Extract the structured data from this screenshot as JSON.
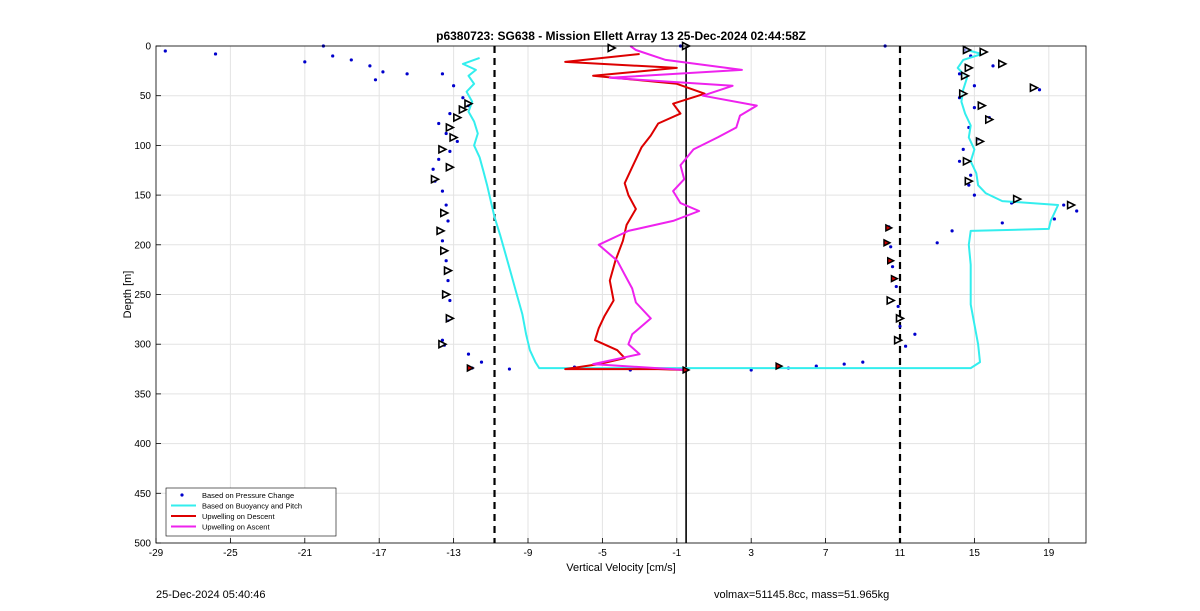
{
  "chart_data": {
    "type": "line",
    "title": "p6380723: SG638 - Mission Ellett Array 13 25-Dec-2024 02:44:58Z",
    "xlabel": "Vertical Velocity [cm/s]",
    "ylabel": "Depth [m]",
    "xlim": [
      -29,
      21
    ],
    "ylim": [
      0,
      500
    ],
    "y_reversed": true,
    "grid": true,
    "xticks": [
      -29,
      -25,
      -21,
      -17,
      -13,
      -9,
      -5,
      -1,
      3,
      7,
      11,
      15,
      19
    ],
    "yticks": [
      0,
      50,
      100,
      150,
      200,
      250,
      300,
      350,
      400,
      450,
      500
    ],
    "legend_position": "bottom-left",
    "reference_lines": {
      "dashed": [
        -10.8,
        11
      ],
      "solid": [
        -0.5
      ]
    },
    "series": [
      {
        "name": "Based on Pressure Change",
        "style": "dots",
        "color": "#0000cc",
        "points": [
          [
            -28.5,
            5
          ],
          [
            -25.8,
            8
          ],
          [
            -20,
            0
          ],
          [
            -19.5,
            10
          ],
          [
            -21,
            16
          ],
          [
            -18.5,
            14
          ],
          [
            -17.5,
            20
          ],
          [
            -16.8,
            26
          ],
          [
            -17.2,
            34
          ],
          [
            -15.5,
            28
          ],
          [
            -13.6,
            28
          ],
          [
            -13,
            40
          ],
          [
            -12.5,
            52
          ],
          [
            -12.2,
            60
          ],
          [
            -13.2,
            68
          ],
          [
            -13.8,
            78
          ],
          [
            -13.4,
            88
          ],
          [
            -12.8,
            96
          ],
          [
            -13.2,
            106
          ],
          [
            -13.8,
            114
          ],
          [
            -14.1,
            124
          ],
          [
            -14,
            136
          ],
          [
            -13.6,
            146
          ],
          [
            -13.4,
            160
          ],
          [
            -13.3,
            176
          ],
          [
            -13.6,
            196
          ],
          [
            -13.4,
            216
          ],
          [
            -13.3,
            236
          ],
          [
            -13.2,
            256
          ],
          [
            -13.3,
            276
          ],
          [
            -13.6,
            296
          ],
          [
            -13.5,
            301
          ],
          [
            -12.2,
            310
          ],
          [
            -11.5,
            318
          ],
          [
            -12,
            324
          ],
          [
            -10,
            325
          ],
          [
            -6.5,
            323
          ],
          [
            -3.5,
            326
          ],
          [
            -0.8,
            0
          ],
          [
            -0.5,
            326
          ],
          [
            3,
            326
          ],
          [
            5,
            324
          ],
          [
            6.5,
            322
          ],
          [
            8,
            320
          ],
          [
            9,
            318
          ],
          [
            10.4,
            182
          ],
          [
            10.5,
            202
          ],
          [
            10.6,
            222
          ],
          [
            10.8,
            242
          ],
          [
            10.9,
            262
          ],
          [
            11,
            282
          ],
          [
            11.3,
            302
          ],
          [
            11.8,
            290
          ],
          [
            14.5,
            4
          ],
          [
            14.8,
            10
          ],
          [
            16,
            20
          ],
          [
            14.2,
            28
          ],
          [
            15,
            40
          ],
          [
            18.5,
            44
          ],
          [
            14.2,
            52
          ],
          [
            15,
            62
          ],
          [
            15.8,
            72
          ],
          [
            14.7,
            82
          ],
          [
            15.2,
            94
          ],
          [
            14.4,
            104
          ],
          [
            14.2,
            116
          ],
          [
            14.8,
            130
          ],
          [
            14.7,
            140
          ],
          [
            15,
            150
          ],
          [
            17,
            158
          ],
          [
            19.8,
            160
          ],
          [
            20.5,
            166
          ],
          [
            19.3,
            174
          ],
          [
            16.5,
            178
          ],
          [
            13.8,
            186
          ],
          [
            13,
            198
          ],
          [
            10.2,
            0
          ]
        ]
      },
      {
        "name": "Based on Buoyancy and Pitch",
        "style": "line",
        "color": "#33eeee",
        "points": [
          [
            -11.6,
            12
          ],
          [
            -12.5,
            18
          ],
          [
            -11.8,
            24
          ],
          [
            -12.2,
            30
          ],
          [
            -11.9,
            38
          ],
          [
            -12.3,
            46
          ],
          [
            -12,
            56
          ],
          [
            -12.2,
            66
          ],
          [
            -11.9,
            76
          ],
          [
            -11.7,
            88
          ],
          [
            -11.9,
            100
          ],
          [
            -11.6,
            112
          ],
          [
            -11.4,
            126
          ],
          [
            -11.2,
            140
          ],
          [
            -11,
            156
          ],
          [
            -10.8,
            172
          ],
          [
            -10.5,
            190
          ],
          [
            -10.2,
            210
          ],
          [
            -9.9,
            230
          ],
          [
            -9.6,
            250
          ],
          [
            -9.3,
            270
          ],
          [
            -9.1,
            290
          ],
          [
            -8.9,
            306
          ],
          [
            -8.6,
            318
          ],
          [
            -8.4,
            324
          ],
          [
            -1,
            324
          ],
          [
            4,
            324
          ],
          [
            12.5,
            324
          ],
          [
            14.8,
            324
          ],
          [
            15.3,
            318
          ],
          [
            15.2,
            300
          ],
          [
            15,
            280
          ],
          [
            14.8,
            260
          ],
          [
            14.8,
            240
          ],
          [
            14.8,
            220
          ],
          [
            14.7,
            200
          ],
          [
            14.8,
            186
          ],
          [
            19,
            184
          ],
          [
            19.1,
            176
          ],
          [
            19.3,
            168
          ],
          [
            19.5,
            160
          ],
          [
            16.5,
            156
          ],
          [
            15.6,
            148
          ],
          [
            15.2,
            140
          ],
          [
            15.1,
            128
          ],
          [
            14.8,
            116
          ],
          [
            15,
            104
          ],
          [
            14.7,
            92
          ],
          [
            14.8,
            80
          ],
          [
            14.5,
            68
          ],
          [
            14.3,
            56
          ],
          [
            14.4,
            44
          ],
          [
            14.6,
            32
          ],
          [
            14.1,
            22
          ],
          [
            14.4,
            14
          ],
          [
            15.4,
            8
          ],
          [
            14.6,
            4
          ]
        ]
      },
      {
        "name": "Upwelling on Descent",
        "style": "line",
        "color": "#dd0000",
        "points": [
          [
            -3,
            8
          ],
          [
            -7,
            16
          ],
          [
            -1,
            22
          ],
          [
            -5.5,
            30
          ],
          [
            -1,
            38
          ],
          [
            0.5,
            48
          ],
          [
            -1.2,
            58
          ],
          [
            -0.8,
            68
          ],
          [
            -2,
            78
          ],
          [
            -2.4,
            90
          ],
          [
            -2.9,
            102
          ],
          [
            -3.2,
            114
          ],
          [
            -3.5,
            126
          ],
          [
            -3.8,
            138
          ],
          [
            -3.6,
            150
          ],
          [
            -3.2,
            164
          ],
          [
            -3.7,
            180
          ],
          [
            -3.9,
            196
          ],
          [
            -4.3,
            216
          ],
          [
            -4.6,
            236
          ],
          [
            -4.4,
            256
          ],
          [
            -4.9,
            272
          ],
          [
            -5.2,
            284
          ],
          [
            -5.4,
            296
          ],
          [
            -4.2,
            306
          ],
          [
            -3.8,
            314
          ],
          [
            -5.2,
            320
          ],
          [
            -7,
            325
          ],
          [
            -2,
            325
          ],
          [
            -0.5,
            326
          ]
        ]
      },
      {
        "name": "Upwelling on Ascent",
        "style": "line",
        "color": "#ee22ee",
        "points": [
          [
            -0.5,
            326
          ],
          [
            -5.5,
            320
          ],
          [
            -3,
            310
          ],
          [
            -3.6,
            300
          ],
          [
            -3.4,
            290
          ],
          [
            -2.4,
            274
          ],
          [
            -3.2,
            258
          ],
          [
            -3.4,
            244
          ],
          [
            -3.8,
            230
          ],
          [
            -4.2,
            216
          ],
          [
            -5.2,
            200
          ],
          [
            -3.6,
            186
          ],
          [
            -1.2,
            176
          ],
          [
            0.2,
            166
          ],
          [
            -0.8,
            158
          ],
          [
            -1.2,
            146
          ],
          [
            -0.6,
            134
          ],
          [
            -0.8,
            120
          ],
          [
            -0.1,
            104
          ],
          [
            1.2,
            92
          ],
          [
            2.2,
            82
          ],
          [
            2.4,
            70
          ],
          [
            3.3,
            60
          ],
          [
            0.4,
            50
          ],
          [
            2,
            40
          ],
          [
            -4.6,
            32
          ],
          [
            2.5,
            24
          ],
          [
            -1.6,
            14
          ],
          [
            -3.2,
            4
          ],
          [
            -3.5,
            0
          ]
        ]
      }
    ],
    "markers": {
      "hollow_triangles": [
        [
          -12.2,
          58
        ],
        [
          -12.5,
          64
        ],
        [
          -12.8,
          72
        ],
        [
          -13.2,
          82
        ],
        [
          -13,
          92
        ],
        [
          -13.6,
          104
        ],
        [
          -13.2,
          122
        ],
        [
          -14,
          134
        ],
        [
          -13.5,
          168
        ],
        [
          -13.7,
          186
        ],
        [
          -13.5,
          206
        ],
        [
          -13.3,
          226
        ],
        [
          -13.4,
          250
        ],
        [
          -13.2,
          274
        ],
        [
          -13.6,
          300
        ],
        [
          -4.5,
          2
        ],
        [
          -0.5,
          0
        ],
        [
          14.6,
          4
        ],
        [
          15.5,
          6
        ],
        [
          16.5,
          18
        ],
        [
          14.7,
          22
        ],
        [
          14.5,
          30
        ],
        [
          18.2,
          42
        ],
        [
          14.4,
          48
        ],
        [
          15.4,
          60
        ],
        [
          15.8,
          74
        ],
        [
          15.3,
          96
        ],
        [
          14.6,
          116
        ],
        [
          14.7,
          136
        ],
        [
          17.3,
          154
        ],
        [
          20.2,
          160
        ],
        [
          10.5,
          256
        ],
        [
          11,
          274
        ],
        [
          10.9,
          296
        ]
      ],
      "red_filled": [
        [
          -12.1,
          324
        ],
        [
          -0.5,
          326
        ],
        [
          4.5,
          322
        ],
        [
          10.4,
          183
        ],
        [
          10.3,
          198
        ],
        [
          10.5,
          216
        ],
        [
          10.7,
          234
        ]
      ]
    }
  },
  "footer": {
    "left_timestamp": "25-Dec-2024 05:40:46",
    "right_text": "volmax=51145.8cc, mass=51.965kg"
  }
}
